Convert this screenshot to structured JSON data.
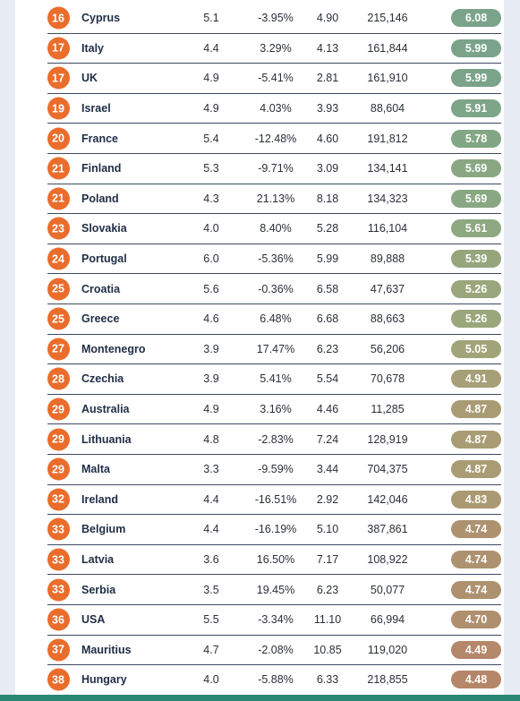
{
  "ranking": {
    "rows": [
      {
        "rank": "16",
        "country": "Cyprus",
        "v1": "5.1",
        "v2": "-3.95%",
        "v3": "4.90",
        "v4": "215,146",
        "score": "6.08",
        "color": "#7aa38a"
      },
      {
        "rank": "17",
        "country": "Italy",
        "v1": "4.4",
        "v2": "3.29%",
        "v3": "4.13",
        "v4": "161,844",
        "score": "5.99",
        "color": "#7aa38a"
      },
      {
        "rank": "17",
        "country": "UK",
        "v1": "4.9",
        "v2": "-5.41%",
        "v3": "2.81",
        "v4": "161,910",
        "score": "5.99",
        "color": "#7aa38a"
      },
      {
        "rank": "19",
        "country": "Israel",
        "v1": "4.9",
        "v2": "4.03%",
        "v3": "3.93",
        "v4": "88,604",
        "score": "5.91",
        "color": "#7ea587"
      },
      {
        "rank": "20",
        "country": "France",
        "v1": "5.4",
        "v2": "-12.48%",
        "v3": "4.60",
        "v4": "191,812",
        "score": "5.78",
        "color": "#83a685"
      },
      {
        "rank": "21",
        "country": "Finland",
        "v1": "5.3",
        "v2": "-9.71%",
        "v3": "3.09",
        "v4": "134,141",
        "score": "5.69",
        "color": "#89a783"
      },
      {
        "rank": "21",
        "country": "Poland",
        "v1": "4.3",
        "v2": "21.13%",
        "v3": "8.18",
        "v4": "134,323",
        "score": "5.69",
        "color": "#89a783"
      },
      {
        "rank": "23",
        "country": "Slovakia",
        "v1": "4.0",
        "v2": "8.40%",
        "v3": "5.28",
        "v4": "116,104",
        "score": "5.61",
        "color": "#8ea881"
      },
      {
        "rank": "24",
        "country": "Portugal",
        "v1": "6.0",
        "v2": "-5.36%",
        "v3": "5.99",
        "v4": "89,888",
        "score": "5.39",
        "color": "#95a67d"
      },
      {
        "rank": "25",
        "country": "Croatia",
        "v1": "5.6",
        "v2": "-0.36%",
        "v3": "6.58",
        "v4": "47,637",
        "score": "5.26",
        "color": "#9aa67b"
      },
      {
        "rank": "25",
        "country": "Greece",
        "v1": "4.6",
        "v2": "6.48%",
        "v3": "6.68",
        "v4": "88,663",
        "score": "5.26",
        "color": "#9aa67b"
      },
      {
        "rank": "27",
        "country": "Montenegro",
        "v1": "3.9",
        "v2": "17.47%",
        "v3": "6.23",
        "v4": "56,206",
        "score": "5.05",
        "color": "#a1a479"
      },
      {
        "rank": "28",
        "country": "Czechia",
        "v1": "3.9",
        "v2": "5.41%",
        "v3": "5.54",
        "v4": "70,678",
        "score": "4.91",
        "color": "#a79f77"
      },
      {
        "rank": "29",
        "country": "Australia",
        "v1": "4.9",
        "v2": "3.16%",
        "v3": "4.46",
        "v4": "11,285",
        "score": "4.87",
        "color": "#a99c75"
      },
      {
        "rank": "29",
        "country": "Lithuania",
        "v1": "4.8",
        "v2": "-2.83%",
        "v3": "7.24",
        "v4": "128,919",
        "score": "4.87",
        "color": "#a99c75"
      },
      {
        "rank": "29",
        "country": "Malta",
        "v1": "3.3",
        "v2": "-9.59%",
        "v3": "3.44",
        "v4": "704,375",
        "score": "4.87",
        "color": "#a99c75"
      },
      {
        "rank": "32",
        "country": "Ireland",
        "v1": "4.4",
        "v2": "-16.51%",
        "v3": "2.92",
        "v4": "142,046",
        "score": "4.83",
        "color": "#ab9973"
      },
      {
        "rank": "33",
        "country": "Belgium",
        "v1": "4.4",
        "v2": "-16.19%",
        "v3": "5.10",
        "v4": "387,861",
        "score": "4.74",
        "color": "#ae9270"
      },
      {
        "rank": "33",
        "country": "Latvia",
        "v1": "3.6",
        "v2": "16.50%",
        "v3": "7.17",
        "v4": "108,922",
        "score": "4.74",
        "color": "#ae9270"
      },
      {
        "rank": "33",
        "country": "Serbia",
        "v1": "3.5",
        "v2": "19.45%",
        "v3": "6.23",
        "v4": "50,077",
        "score": "4.74",
        "color": "#ae9270"
      },
      {
        "rank": "36",
        "country": "USA",
        "v1": "5.5",
        "v2": "-3.34%",
        "v3": "11.10",
        "v4": "66,994",
        "score": "4.70",
        "color": "#b08f6e"
      },
      {
        "rank": "37",
        "country": "Mauritius",
        "v1": "4.7",
        "v2": "-2.08%",
        "v3": "10.85",
        "v4": "119,020",
        "score": "4.49",
        "color": "#b5876b"
      },
      {
        "rank": "38",
        "country": "Hungary",
        "v1": "4.0",
        "v2": "-5.88%",
        "v3": "6.33",
        "v4": "218,855",
        "score": "4.48",
        "color": "#b68669"
      }
    ]
  }
}
